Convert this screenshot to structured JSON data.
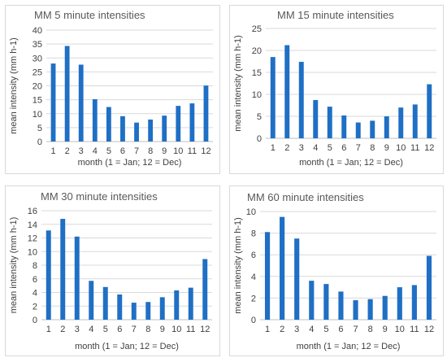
{
  "chart_data": [
    {
      "type": "bar",
      "title": "MM 5 minute intensities",
      "xlabel": "month (1 = Jan; 12 = Dec)",
      "ylabel": "mean intensity (mm h-1)",
      "categories": [
        "1",
        "2",
        "3",
        "4",
        "5",
        "6",
        "7",
        "8",
        "9",
        "10",
        "11",
        "12"
      ],
      "values": [
        28,
        34.3,
        27.6,
        15.2,
        12.4,
        9.1,
        6.8,
        7.9,
        9.3,
        12.8,
        13.7,
        20.1
      ],
      "ylim": [
        0,
        40
      ],
      "yticks": [
        0,
        5,
        10,
        15,
        20,
        25,
        30,
        35,
        40
      ],
      "grid": true,
      "bar_color": "#1f6fc5"
    },
    {
      "type": "bar",
      "title": "MM 15 minute intensities",
      "xlabel": "month (1 = Jan; 12 = Dec)",
      "ylabel": "mean intensity (mm h-1)",
      "categories": [
        "1",
        "2",
        "3",
        "4",
        "5",
        "6",
        "7",
        "8",
        "9",
        "10",
        "11",
        "12"
      ],
      "values": [
        18.5,
        21.2,
        17.4,
        8.7,
        7.2,
        5.2,
        3.6,
        4.0,
        5.0,
        7.0,
        7.7,
        12.3
      ],
      "ylim": [
        0,
        25
      ],
      "yticks": [
        0,
        5,
        10,
        15,
        20,
        25
      ],
      "grid": true,
      "bar_color": "#1f6fc5"
    },
    {
      "type": "bar",
      "title": "MM 30 minute intensities",
      "xlabel": "month (1 = Jan; 12 = Dec)",
      "ylabel": "mean intensity (mm h-1)",
      "categories": [
        "1",
        "2",
        "3",
        "4",
        "5",
        "6",
        "7",
        "8",
        "9",
        "10",
        "11",
        "12"
      ],
      "values": [
        13.1,
        14.8,
        12.2,
        5.7,
        4.8,
        3.7,
        2.5,
        2.6,
        3.3,
        4.3,
        4.7,
        8.9
      ],
      "ylim": [
        0,
        16
      ],
      "yticks": [
        0,
        2,
        4,
        6,
        8,
        10,
        12,
        14,
        16
      ],
      "grid": true,
      "bar_color": "#1f6fc5"
    },
    {
      "type": "bar",
      "title": "MM 60 minute intensities",
      "xlabel": "month (1 = Jan; 12 = Dec)",
      "ylabel": "mean intensity (mm h-1)",
      "categories": [
        "1",
        "2",
        "3",
        "4",
        "5",
        "6",
        "7",
        "8",
        "9",
        "10",
        "11",
        "12"
      ],
      "values": [
        8.1,
        9.5,
        7.5,
        3.6,
        3.3,
        2.6,
        1.8,
        1.9,
        2.2,
        3.0,
        3.2,
        5.9
      ],
      "ylim": [
        0,
        10
      ],
      "yticks": [
        0,
        2,
        4,
        6,
        8,
        10
      ],
      "grid": true,
      "bar_color": "#1f6fc5"
    }
  ]
}
